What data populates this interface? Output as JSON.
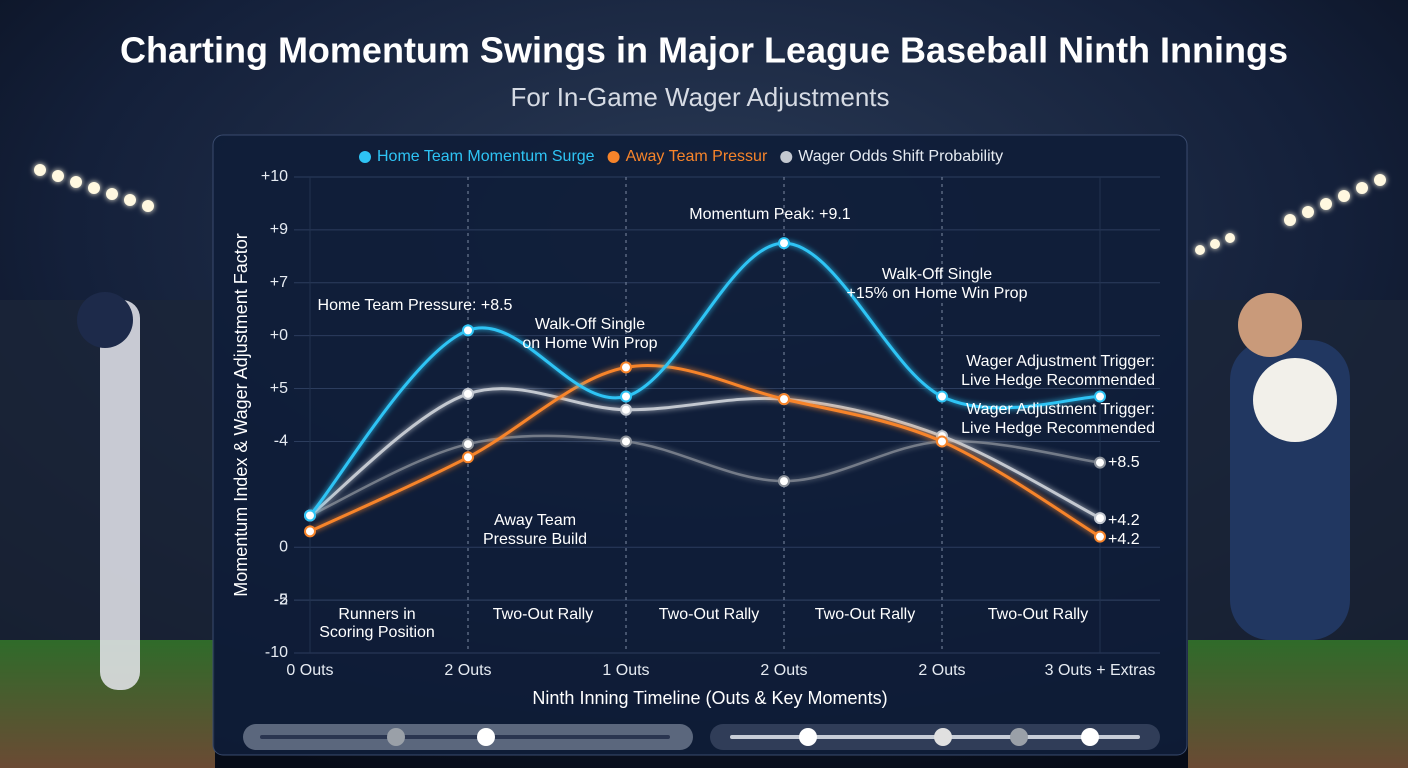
{
  "chart_data": {
    "type": "line",
    "title": "Charting Momentum Swings in Major League Baseball Ninth Innings",
    "subtitle": "For In-Game Wager Adjustments",
    "x_label": "Ninth Inning Timeline (Outs & Key Moments)",
    "y_label": "Momentum Index & Wager Adjustment Factor",
    "categories": [
      "0 Outs",
      "2 Outs",
      "1 Outs",
      "2 Outs",
      "2 Outs",
      "3 Outs + Extras"
    ],
    "series": [
      {
        "name": "Home Team Momentum Surge",
        "color": "#2ec4f5",
        "values": [
          1.2,
          8.2,
          5.7,
          11.5,
          5.7,
          5.7
        ]
      },
      {
        "name": "Away Team Pressur",
        "color": "#f7842a",
        "values": [
          0.6,
          3.4,
          6.8,
          5.6,
          4.0,
          0.4
        ]
      },
      {
        "name": "Wager Odds Shift Probability",
        "color": "#c3c8d0",
        "values": [
          1.2,
          5.8,
          5.2,
          5.6,
          4.2,
          1.1
        ]
      },
      {
        "color": "#8d939c",
        "values": [
          1.2,
          3.9,
          4.0,
          2.5,
          4.0,
          3.2
        ]
      }
    ],
    "ylim": [
      -4,
      14
    ],
    "yticks": [
      {
        "value": 14,
        "label": "+10"
      },
      {
        "value": 12,
        "label": "+9"
      },
      {
        "value": 10,
        "label": "+7"
      },
      {
        "value": 8,
        "label": "+0"
      },
      {
        "value": 6,
        "label": "+5"
      },
      {
        "value": 4,
        "label": "-4"
      },
      -2,
      0,
      {
        "value": -2,
        "label": "-5"
      },
      {
        "value": -4,
        "label": "-10"
      }
    ],
    "grid": true,
    "annotations": [
      {
        "lines": [
          "Momentum Peak: +9.1"
        ]
      },
      {
        "lines": [
          "Home Team Pressure: +8.5"
        ]
      },
      {
        "lines": [
          "Walk-Off Single",
          "on Home Win Prop"
        ]
      },
      {
        "lines": [
          "Walk-Off Single",
          "+15% on Home Win Prop"
        ]
      },
      {
        "lines": [
          "Wager Adjustment Trigger:",
          "Live Hedge Recommended"
        ]
      },
      {
        "lines": [
          "Wager Adjustment Trigger:",
          "Live Hedge Recommended"
        ]
      },
      {
        "lines": [
          "Away Team",
          "Pressure Build"
        ]
      }
    ],
    "point_labels": [
      "+8.5",
      "+4.2",
      "+4.2"
    ],
    "phases": [
      {
        "lines": [
          "Runners in",
          "Scoring Position"
        ]
      },
      {
        "lines": [
          "Two-Out Rally"
        ]
      },
      {
        "lines": [
          "Two-Out Rally"
        ]
      },
      {
        "lines": [
          "Two-Out Rally"
        ]
      },
      {
        "lines": [
          "Two-Out Rally"
        ]
      }
    ]
  }
}
